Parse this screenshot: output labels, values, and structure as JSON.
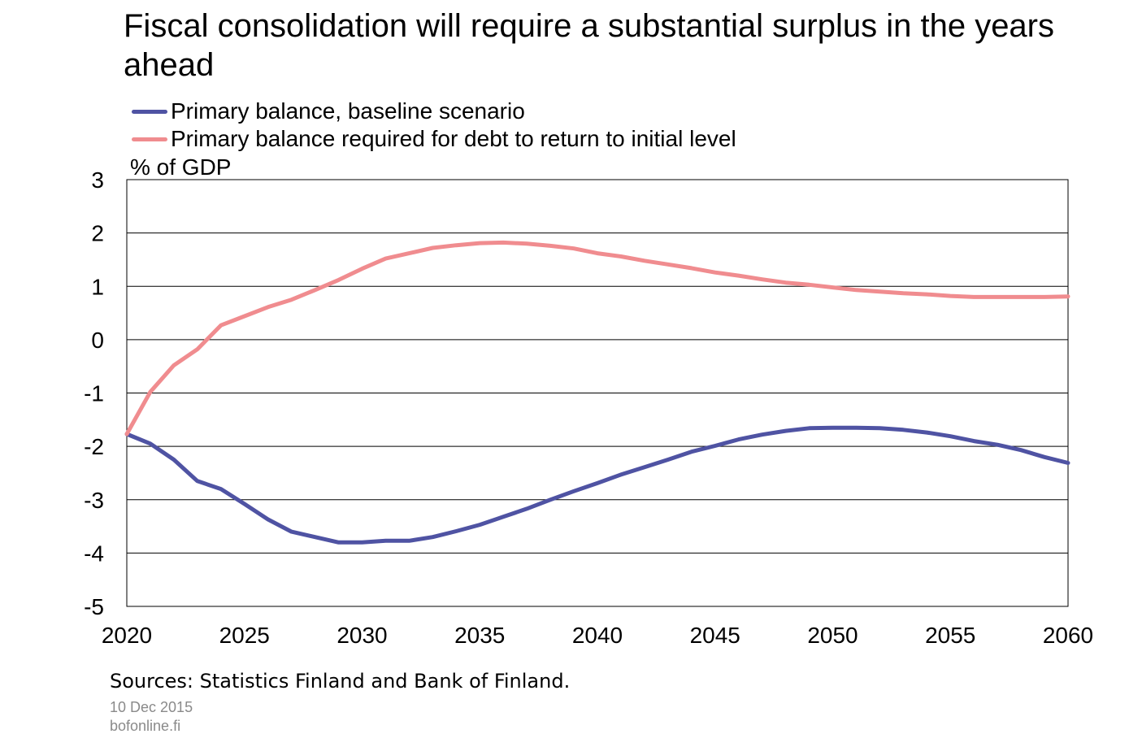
{
  "chart_data": {
    "type": "line",
    "title": "Fiscal consolidation will require a substantial surplus in the years ahead",
    "ylabel": "% of GDP",
    "xlabel": "",
    "x": [
      2020,
      2021,
      2022,
      2023,
      2024,
      2025,
      2026,
      2027,
      2028,
      2029,
      2030,
      2031,
      2032,
      2033,
      2034,
      2035,
      2036,
      2037,
      2038,
      2039,
      2040,
      2041,
      2042,
      2043,
      2044,
      2045,
      2046,
      2047,
      2048,
      2049,
      2050,
      2051,
      2052,
      2053,
      2054,
      2055,
      2056,
      2057,
      2058,
      2059,
      2060
    ],
    "series": [
      {
        "name": "Primary balance, baseline scenario",
        "color": "#4f53a3",
        "values": [
          -1.77,
          -1.95,
          -2.25,
          -2.65,
          -2.8,
          -3.08,
          -3.37,
          -3.6,
          -3.7,
          -3.8,
          -3.8,
          -3.77,
          -3.77,
          -3.7,
          -3.59,
          -3.47,
          -3.32,
          -3.17,
          -3.0,
          -2.84,
          -2.69,
          -2.53,
          -2.39,
          -2.25,
          -2.1,
          -1.99,
          -1.87,
          -1.78,
          -1.71,
          -1.66,
          -1.65,
          -1.65,
          -1.66,
          -1.69,
          -1.74,
          -1.81,
          -1.9,
          -1.97,
          -2.07,
          -2.2,
          -2.31
        ]
      },
      {
        "name": "Primary balance required for debt to return to initial level",
        "color": "#f08c8f",
        "values": [
          -1.77,
          -0.98,
          -0.48,
          -0.18,
          0.27,
          0.44,
          0.61,
          0.75,
          0.93,
          1.12,
          1.33,
          1.52,
          1.62,
          1.72,
          1.77,
          1.81,
          1.82,
          1.8,
          1.76,
          1.71,
          1.62,
          1.56,
          1.48,
          1.41,
          1.34,
          1.26,
          1.2,
          1.13,
          1.07,
          1.03,
          0.98,
          0.93,
          0.9,
          0.87,
          0.85,
          0.82,
          0.8,
          0.8,
          0.8,
          0.8,
          0.81
        ]
      }
    ],
    "ylim": [
      -5,
      3
    ],
    "yticks": [
      "3",
      "2",
      "1",
      "0",
      "-1",
      "-2",
      "-3",
      "-4",
      "-5"
    ],
    "xlim": [
      2020,
      2060
    ],
    "xticks": [
      "2020",
      "2025",
      "2030",
      "2035",
      "2040",
      "2045",
      "2050",
      "2055",
      "2060"
    ],
    "grid": "horizontal",
    "legend": "top-left"
  },
  "footer": {
    "sources": "Sources: Statistics Finland and Bank of Finland.",
    "date": "10 Dec 2015",
    "site": "bofonline.fi"
  }
}
